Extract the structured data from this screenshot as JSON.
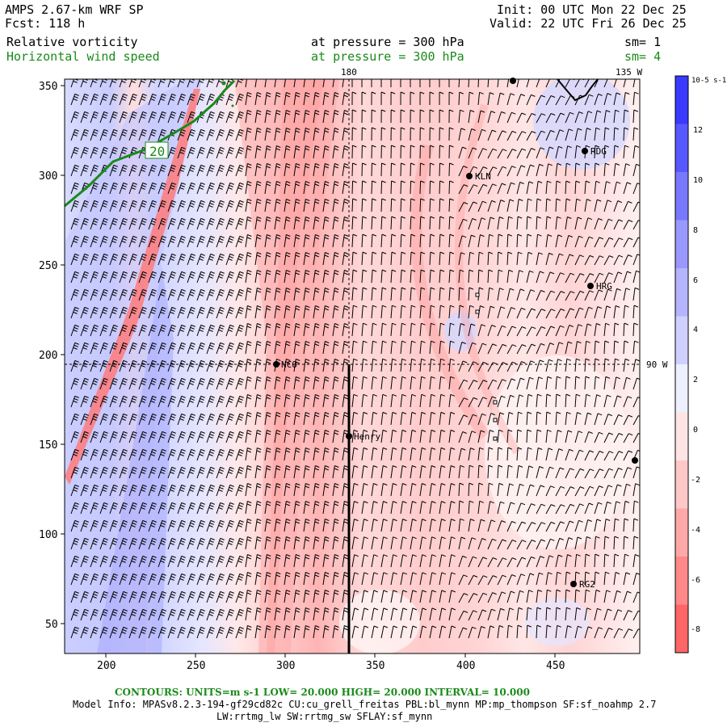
{
  "header": {
    "model": "AMPS 2.67-km WRF SP",
    "forecast": "Fcst: 118 h",
    "init": "Init: 00 UTC Mon 22 Dec 25",
    "valid": "Valid: 22 UTC Fri 26 Dec 25",
    "field1": {
      "name": "Relative vorticity",
      "level": "at pressure =  300 hPa",
      "sm": "sm= 1"
    },
    "field2": {
      "name": "Horizontal wind speed",
      "level": "at pressure =  300 hPa",
      "sm": "sm= 4"
    }
  },
  "map": {
    "x_ticks": [
      "200",
      "250",
      "300",
      "350",
      "400",
      "450"
    ],
    "y_ticks": [
      "350",
      "300",
      "250",
      "200",
      "150",
      "100",
      "50"
    ],
    "lon_labels": {
      "top_180": "180",
      "top_135w": "135 W",
      "right_90w": "90 W"
    },
    "contour_label": "20",
    "stations": [
      {
        "id": "LTT",
        "label": ""
      },
      {
        "id": "RDG",
        "label": "RDG"
      },
      {
        "id": "KLN",
        "label": "KLN"
      },
      {
        "id": "HRG",
        "label": "HRG"
      },
      {
        "id": "NCO",
        "label": "NCO"
      },
      {
        "id": "Henry",
        "label": "Henry"
      },
      {
        "id": "RG2",
        "label": "RG2"
      },
      {
        "id": "edge",
        "label": ""
      }
    ]
  },
  "colorbar": {
    "unit": "10-5 s-1",
    "ticks": [
      "12",
      "10",
      "8",
      "6",
      "4",
      "2",
      "0",
      "-2",
      "-4",
      "-6",
      "-8"
    ],
    "colors": [
      "#3a3aff",
      "#5858ff",
      "#7878ff",
      "#9898ff",
      "#b4b4ff",
      "#d0d0ff",
      "#ecf0ff",
      "#ffe4e4",
      "#ffc8c8",
      "#ffa8a8",
      "#ff8888",
      "#ff6666"
    ]
  },
  "footer": {
    "contours": "CONTOURS:  UNITS=m s-1  LOW=  20.000      HIGH=  20.000      INTERVAL=   10.000",
    "model_info": "Model Info: MPASv8.2.3-194-gf29cd82c CU:cu_grell_freitas PBL:bl_mynn MP:mp_thompson SF:sf_noahmp 2.7",
    "model_info2": "LW:rrtmg_lw SW:rrtmg_sw SFLAY:sf_mynn"
  }
}
